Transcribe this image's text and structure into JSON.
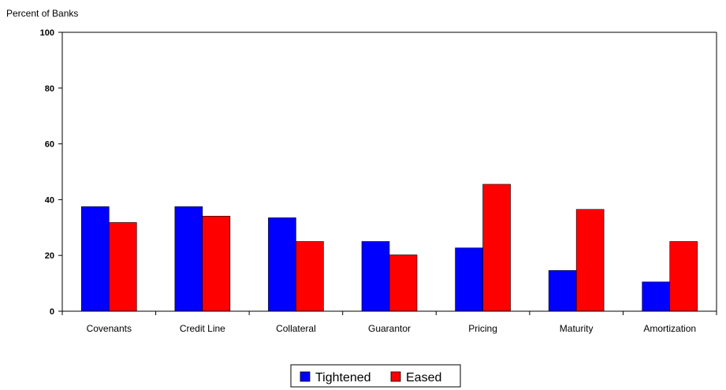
{
  "chart_data": {
    "type": "bar",
    "ylabel": "Percent of Banks",
    "xlabel": "",
    "ylim": [
      0,
      100
    ],
    "yticks": [
      0,
      20,
      40,
      60,
      80,
      100
    ],
    "grid": false,
    "legend_position": "bottom-center",
    "categories": [
      "Covenants",
      "Credit Line",
      "Collateral",
      "Guarantor",
      "Pricing",
      "Maturity",
      "Amortization"
    ],
    "series": [
      {
        "name": "Tightened",
        "color": "#0000FF",
        "values": [
          37.5,
          37.5,
          33.5,
          25,
          22.7,
          14.6,
          10.5
        ]
      },
      {
        "name": "Eased",
        "color": "#FF0000",
        "values": [
          31.8,
          34.1,
          25,
          20.2,
          45.5,
          36.5,
          25
        ]
      }
    ]
  }
}
